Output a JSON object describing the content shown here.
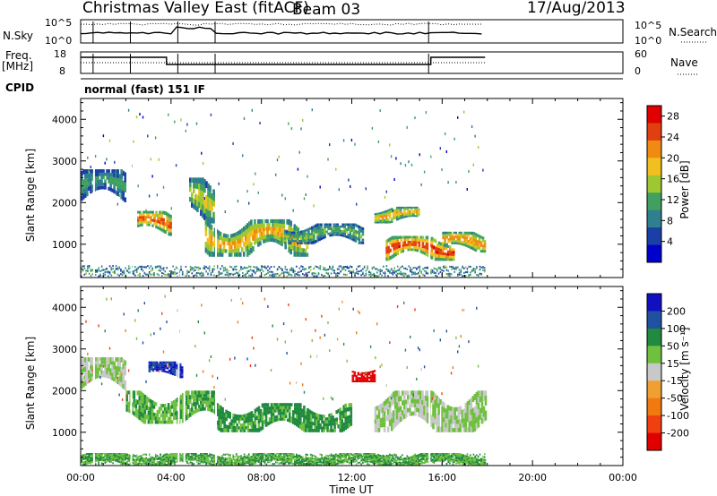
{
  "header": {
    "station": "Christmas Valley East (fitACF)",
    "beam": "Beam 03",
    "date": "17/Aug/2013"
  },
  "side_labels": {
    "nsky": "N.Sky",
    "nsearch": "N.Search",
    "freq_line1": "Freq.",
    "freq_line2": "[MHz]",
    "nave": "Nave",
    "cpid": "CPID",
    "nsky_ticks": [
      "10^5",
      "10^0"
    ],
    "nsearch_ticks": [
      "10^5",
      "10^0"
    ],
    "freq_ticks": [
      "18",
      "8"
    ],
    "nave_ticks": [
      "60",
      "0"
    ]
  },
  "cpid_text": "normal (fast) 151 IF",
  "chart_data": [
    {
      "type": "heatmap",
      "name": "power",
      "ylabel": "Slant Range [km]",
      "xlabel": "",
      "x_ticks": [
        "00:00",
        "04:00",
        "08:00",
        "12:00",
        "16:00",
        "20:00",
        "00:00"
      ],
      "y_ticks": [
        1000,
        2000,
        3000,
        4000
      ],
      "xlim": [
        0,
        24
      ],
      "ylim": [
        200,
        4500
      ],
      "colorbar": {
        "label": "Power [dB]",
        "ticks": [
          4,
          8,
          12,
          16,
          20,
          24,
          28
        ],
        "range": [
          0,
          30
        ],
        "colors": [
          "#0000cc",
          "#1a3fa8",
          "#2f7f8f",
          "#3fa060",
          "#9fc830",
          "#f0c020",
          "#f08a10",
          "#e04010",
          "#e00000"
        ]
      },
      "data_coverage_hours": [
        0.0,
        17.9
      ],
      "features": [
        {
          "t_start": 0.0,
          "t_end": 2.0,
          "range_km": [
            2000,
            2800
          ],
          "power_db": 12
        },
        {
          "t_start": 2.5,
          "t_end": 4.0,
          "range_km": [
            1200,
            1800
          ],
          "power_db": 26
        },
        {
          "t_start": 4.8,
          "t_end": 6.0,
          "range_km": [
            1500,
            2600
          ],
          "power_db": 18
        },
        {
          "t_start": 5.5,
          "t_end": 10.0,
          "range_km": [
            700,
            1600
          ],
          "power_db": 22
        },
        {
          "t_start": 9.0,
          "t_end": 12.5,
          "range_km": [
            1000,
            1500
          ],
          "power_db": 14
        },
        {
          "t_start": 13.0,
          "t_end": 15.0,
          "range_km": [
            1500,
            1900
          ],
          "power_db": 22
        },
        {
          "t_start": 13.5,
          "t_end": 16.5,
          "range_km": [
            600,
            1200
          ],
          "power_db": 28
        },
        {
          "t_start": 16.0,
          "t_end": 17.9,
          "range_km": [
            800,
            1300
          ],
          "power_db": 24
        }
      ]
    },
    {
      "type": "heatmap",
      "name": "velocity",
      "ylabel": "Slant Range [km]",
      "xlabel": "Time UT",
      "x_ticks": [
        "00:00",
        "04:00",
        "08:00",
        "12:00",
        "16:00",
        "20:00",
        "00:00"
      ],
      "y_ticks": [
        1000,
        2000,
        3000,
        4000
      ],
      "xlim": [
        0,
        24
      ],
      "ylim": [
        200,
        4500
      ],
      "colorbar": {
        "label": "Velocity [m s⁻¹]",
        "ticks": [
          200,
          100,
          50,
          15,
          -15,
          -50,
          -100,
          -200
        ],
        "colors": [
          "#1010c0",
          "#2050a0",
          "#208a40",
          "#70c040",
          "#c8c8c8",
          "#f0a030",
          "#f07a10",
          "#f04010",
          "#e00000"
        ]
      },
      "features": [
        {
          "t_start": 0.0,
          "t_end": 2.0,
          "range_km": [
            2000,
            2800
          ],
          "velocity": 0
        },
        {
          "t_start": 3.0,
          "t_end": 4.5,
          "range_km": [
            2300,
            2700
          ],
          "velocity": 150
        },
        {
          "t_start": 2.0,
          "t_end": 6.0,
          "range_km": [
            1200,
            2000
          ],
          "velocity": 30
        },
        {
          "t_start": 6.0,
          "t_end": 12.0,
          "range_km": [
            1000,
            1700
          ],
          "velocity": 40
        },
        {
          "t_start": 12.0,
          "t_end": 13.0,
          "range_km": [
            2200,
            2600
          ],
          "velocity": -200
        },
        {
          "t_start": 13.0,
          "t_end": 17.9,
          "range_km": [
            1000,
            2000
          ],
          "velocity": 0
        },
        {
          "t_start": 0.0,
          "t_end": 17.9,
          "range_km": [
            200,
            500
          ],
          "velocity": 30
        }
      ]
    }
  ]
}
